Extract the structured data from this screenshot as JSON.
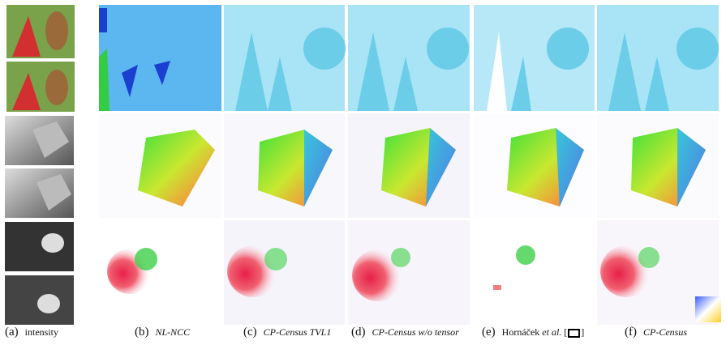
{
  "figure": {
    "captions": [
      {
        "letter": "(a)",
        "text": "intensity"
      },
      {
        "letter": "(b)",
        "text": "NL-NCC"
      },
      {
        "letter": "(c)",
        "text": "CP-Census TVL1"
      },
      {
        "letter": "(d)",
        "text": "CP-Census w/o tensor"
      },
      {
        "letter": "(e)",
        "text": "Hornáček",
        "italic": "et al.",
        "cite_open": "[",
        "cite_close": "]"
      },
      {
        "letter": "(f)",
        "text": "CP-Census"
      }
    ]
  }
}
